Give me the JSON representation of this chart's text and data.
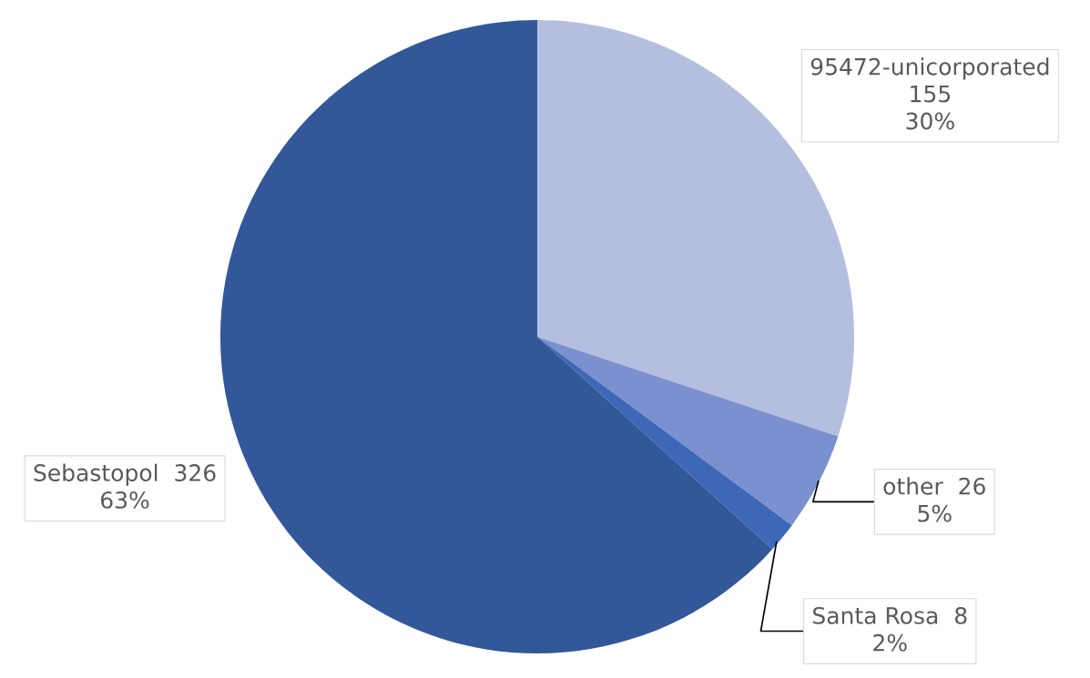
{
  "chart_data": {
    "type": "pie",
    "categories": [
      "95472-unicorporated",
      "other",
      "Santa Rosa",
      "Sebastopol"
    ],
    "values": [
      155,
      26,
      8,
      326
    ],
    "value_labels": [
      "155\n30%",
      "26\n5%",
      "8\n2%",
      "326\n63%"
    ],
    "colors": [
      "#b4bfdf",
      "#7a90cf",
      "#3d68b8",
      "#325899"
    ]
  }
}
